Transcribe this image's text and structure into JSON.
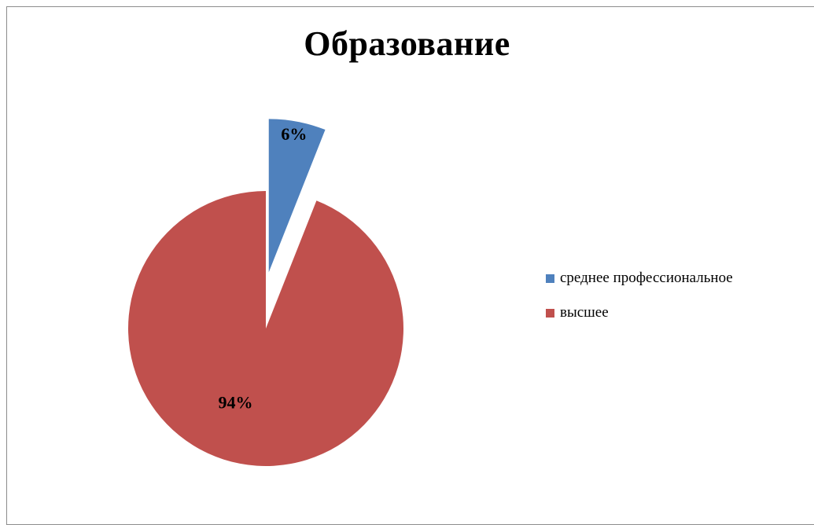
{
  "chart_data": {
    "type": "pie",
    "title": "Образование",
    "categories": [
      "среднее профессиональное",
      "высшее"
    ],
    "values": [
      6,
      94
    ],
    "value_labels": [
      "6%",
      "94%"
    ],
    "colors": [
      "#4F81BD",
      "#C0504D"
    ],
    "exploded": [
      true,
      false
    ],
    "start_angle_deg": 0,
    "direction": "clockwise",
    "legend_position": "right"
  }
}
